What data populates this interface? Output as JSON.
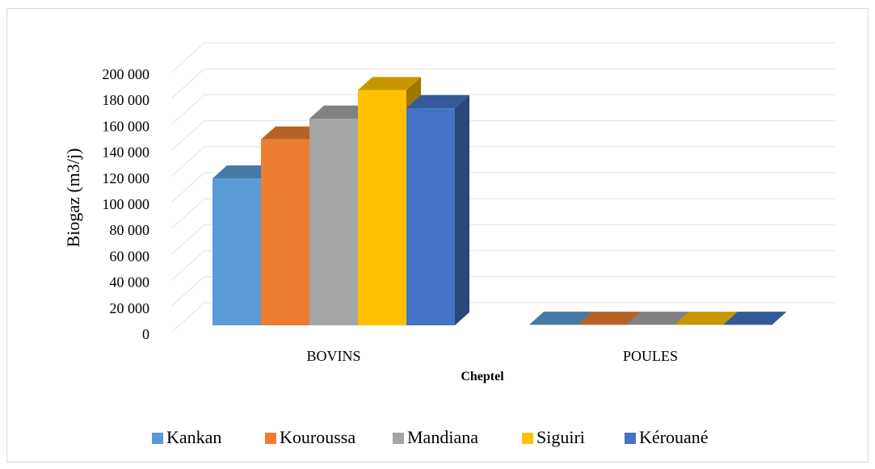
{
  "chart_data": {
    "type": "bar",
    "style": "3d-clustered-column",
    "categories": [
      "BOVINS",
      "POULES"
    ],
    "series": [
      {
        "name": "Kankan",
        "values": [
          113000,
          400
        ],
        "color": "#5B9BD5"
      },
      {
        "name": "Kouroussa",
        "values": [
          143000,
          400
        ],
        "color": "#ED7D31"
      },
      {
        "name": "Mandiana",
        "values": [
          159000,
          400
        ],
        "color": "#A5A5A5"
      },
      {
        "name": "Siguiri",
        "values": [
          181000,
          400
        ],
        "color": "#FFC000"
      },
      {
        "name": "Kérouané",
        "values": [
          167000,
          400
        ],
        "color": "#4472C4"
      }
    ],
    "title": "",
    "xlabel": "Cheptel",
    "ylabel": "Biogaz (m3/j)",
    "ylim": [
      0,
      200000
    ],
    "yticks": [
      "0",
      "20 000",
      "40 000",
      "60 000",
      "80 000",
      "100 000",
      "120 000",
      "140 000",
      "160 000",
      "180 000",
      "200 000"
    ],
    "grid": true,
    "legend_position": "bottom"
  }
}
